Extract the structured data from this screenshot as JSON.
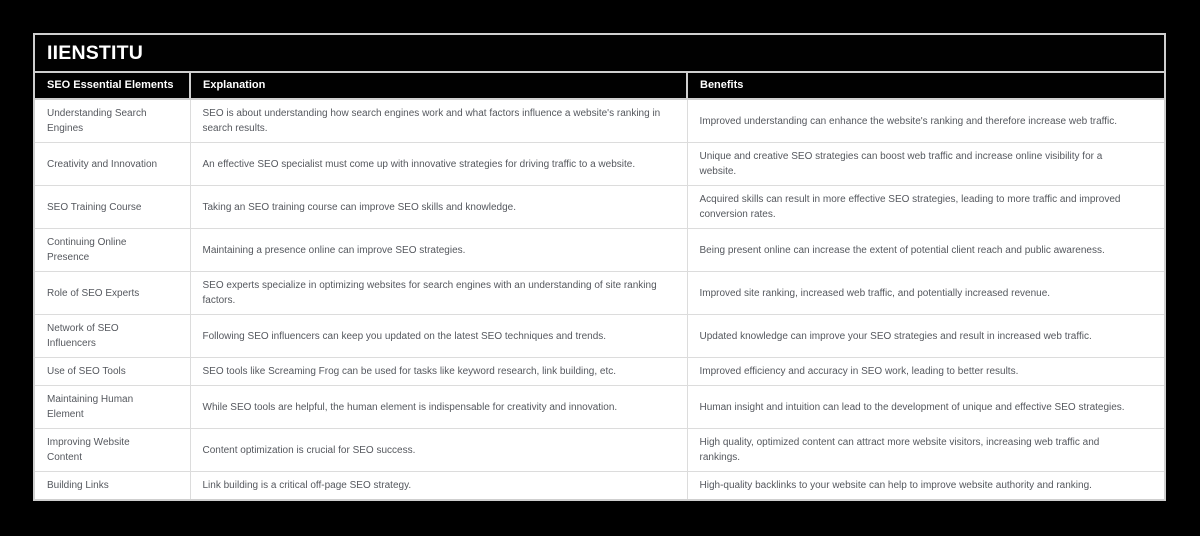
{
  "page": {
    "title": "IIENSTITU",
    "background_color": "#000000"
  },
  "colors": {
    "header_bg": "#010101",
    "header_text": "#ffffff",
    "body_bg": "#ffffff",
    "body_text": "#55585e",
    "outer_border": "#cfcfcf",
    "row_border": "#dcdcdc"
  },
  "table": {
    "columns": [
      "SEO Essential Elements",
      "Explanation",
      "Benefits"
    ],
    "rows": [
      {
        "element": "Understanding Search Engines",
        "explanation": "SEO is about understanding how search engines work and what factors influence a website's ranking in search results.",
        "benefits": "Improved understanding can enhance the website's ranking and therefore increase web traffic."
      },
      {
        "element": "Creativity and Innovation",
        "explanation": "An effective SEO specialist must come up with innovative strategies for driving traffic to a website.",
        "benefits": "Unique and creative SEO strategies can boost web traffic and increase online visibility for a website."
      },
      {
        "element": "SEO Training Course",
        "explanation": "Taking an SEO training course can improve SEO skills and knowledge.",
        "benefits": "Acquired skills can result in more effective SEO strategies, leading to more traffic and improved conversion rates."
      },
      {
        "element": "Continuing Online Presence",
        "explanation": "Maintaining a presence online can improve SEO strategies.",
        "benefits": "Being present online can increase the extent of potential client reach and public awareness."
      },
      {
        "element": "Role of SEO Experts",
        "explanation": "SEO experts specialize in optimizing websites for search engines with an understanding of site ranking factors.",
        "benefits": "Improved site ranking, increased web traffic, and potentially increased revenue."
      },
      {
        "element": "Network of SEO Influencers",
        "explanation": "Following SEO influencers can keep you updated on the latest SEO techniques and trends.",
        "benefits": "Updated knowledge can improve your SEO strategies and result in increased web traffic."
      },
      {
        "element": "Use of SEO Tools",
        "explanation": "SEO tools like Screaming Frog can be used for tasks like keyword research, link building, etc.",
        "benefits": "Improved efficiency and accuracy in SEO work, leading to better results."
      },
      {
        "element": "Maintaining Human Element",
        "explanation": "While SEO tools are helpful, the human element is indispensable for creativity and innovation.",
        "benefits": "Human insight and intuition can lead to the development of unique and effective SEO strategies."
      },
      {
        "element": "Improving Website Content",
        "explanation": "Content optimization is crucial for SEO success.",
        "benefits": "High quality, optimized content can attract more website visitors, increasing web traffic and rankings."
      },
      {
        "element": "Building Links",
        "explanation": "Link building is a critical off-page SEO strategy.",
        "benefits": "High-quality backlinks to your website can help to improve website authority and ranking."
      }
    ]
  }
}
